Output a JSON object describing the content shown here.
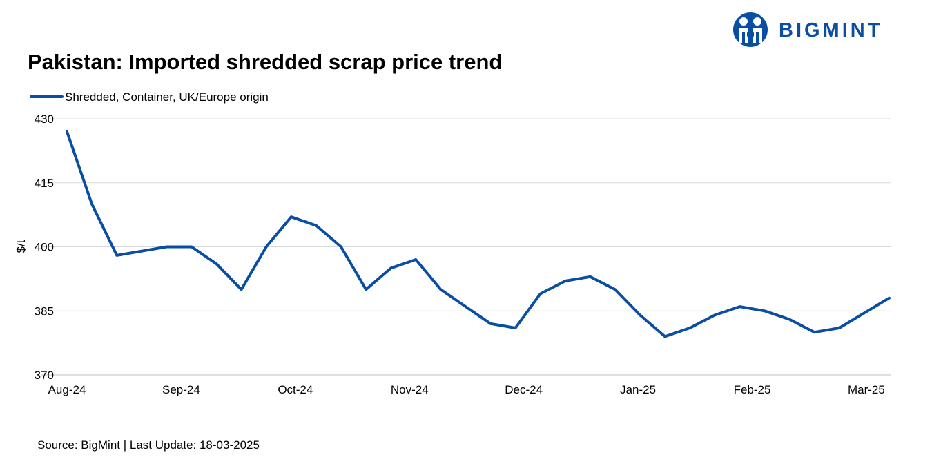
{
  "brand": {
    "name": "BIGMINT",
    "color": "#0a4ea3"
  },
  "title": "Pakistan: Imported shredded scrap price trend",
  "source": "Source: BigMint | Last Update: 18-03-2025",
  "chart_data": {
    "type": "line",
    "title": "Pakistan: Imported shredded scrap price trend",
    "ylabel": "$/t",
    "xlabel": "",
    "ylim": [
      370,
      430
    ],
    "yticks": [
      370,
      385,
      400,
      415,
      430
    ],
    "xticks": [
      "Aug-24",
      "Sep-24",
      "Oct-24",
      "Nov-24",
      "Dec-24",
      "Jan-25",
      "Feb-25",
      "Mar-25"
    ],
    "grid": true,
    "legend_position": "top-left",
    "series": [
      {
        "name": "Shredded, Container, UK/Europe origin",
        "color": "#0a4ea3",
        "values": [
          427,
          410,
          398,
          399,
          400,
          400,
          396,
          390,
          400,
          407,
          405,
          400,
          390,
          395,
          397,
          390,
          386,
          382,
          381,
          389,
          392,
          393,
          390,
          384,
          379,
          381,
          384,
          386,
          385,
          383,
          380,
          381,
          384.5,
          388
        ]
      }
    ]
  }
}
